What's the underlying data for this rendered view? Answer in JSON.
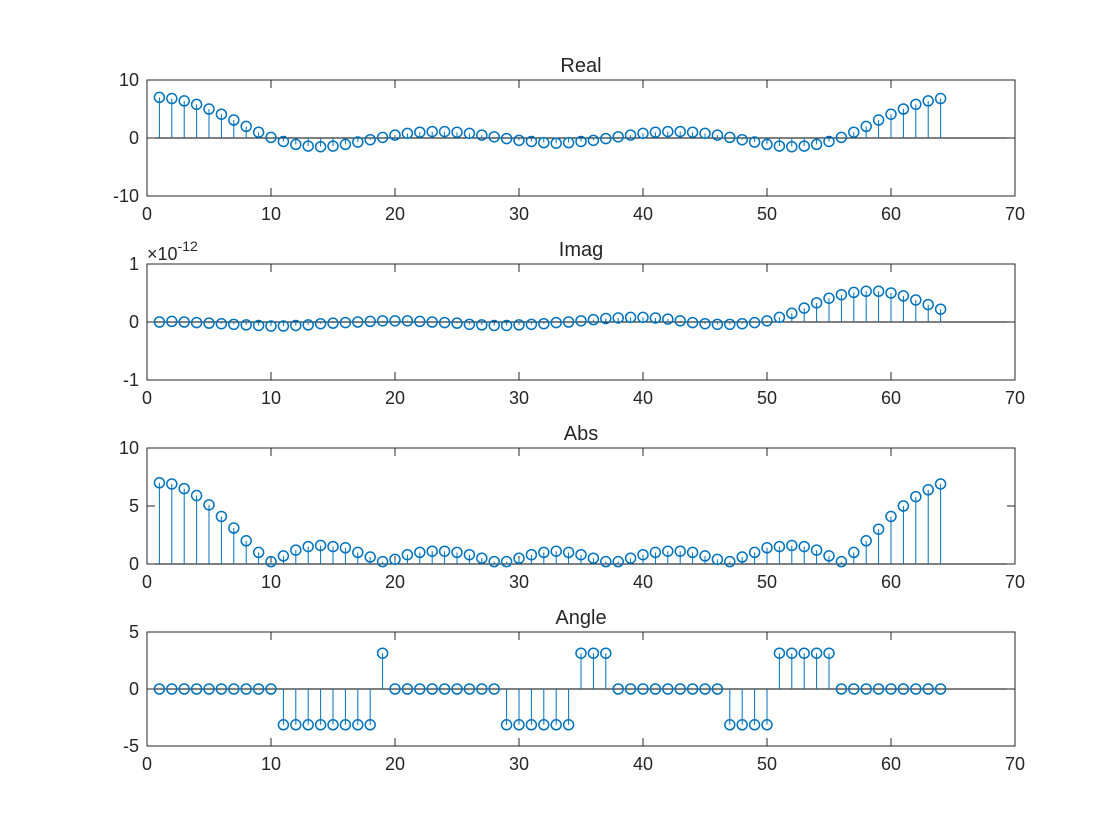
{
  "figure": {
    "background": "#ffffff",
    "axis_color": "#262626",
    "marker_color": "#0072BD"
  },
  "chart_data": [
    {
      "type": "stem",
      "title": "Real",
      "xlabel": "",
      "ylabel": "",
      "xlim": [
        0,
        70
      ],
      "ylim": [
        -10,
        10
      ],
      "xticks": [
        0,
        10,
        20,
        30,
        40,
        50,
        60,
        70
      ],
      "yticks": [
        -10,
        0,
        10
      ],
      "exponent_label": "",
      "x": [
        1,
        2,
        3,
        4,
        5,
        6,
        7,
        8,
        9,
        10,
        11,
        12,
        13,
        14,
        15,
        16,
        17,
        18,
        19,
        20,
        21,
        22,
        23,
        24,
        25,
        26,
        27,
        28,
        29,
        30,
        31,
        32,
        33,
        34,
        35,
        36,
        37,
        38,
        39,
        40,
        41,
        42,
        43,
        44,
        45,
        46,
        47,
        48,
        49,
        50,
        51,
        52,
        53,
        54,
        55,
        56,
        57,
        58,
        59,
        60,
        61,
        62,
        63,
        64
      ],
      "values": [
        7,
        6.8,
        6.4,
        5.8,
        5,
        4.1,
        3.1,
        2,
        1,
        0.1,
        -0.6,
        -1.1,
        -1.4,
        -1.5,
        -1.4,
        -1.1,
        -0.7,
        -0.3,
        0.1,
        0.5,
        0.8,
        1,
        1.1,
        1.1,
        1,
        0.8,
        0.5,
        0.2,
        -0.1,
        -0.4,
        -0.6,
        -0.8,
        -0.9,
        -0.8,
        -0.6,
        -0.4,
        -0.1,
        0.2,
        0.5,
        0.8,
        1,
        1.1,
        1.1,
        1,
        0.8,
        0.5,
        0.1,
        -0.3,
        -0.7,
        -1.1,
        -1.4,
        -1.5,
        -1.4,
        -1.1,
        -0.6,
        0.1,
        1,
        2,
        3.1,
        4.1,
        5,
        5.8,
        6.4,
        6.8
      ]
    },
    {
      "type": "stem",
      "title": "Imag",
      "xlabel": "",
      "ylabel": "",
      "xlim": [
        0,
        70
      ],
      "ylim": [
        -1,
        1
      ],
      "xticks": [
        0,
        10,
        20,
        30,
        40,
        50,
        60,
        70
      ],
      "yticks": [
        -1,
        0,
        1
      ],
      "exponent_label": "×10",
      "exponent_power": "-12",
      "x": [
        1,
        2,
        3,
        4,
        5,
        6,
        7,
        8,
        9,
        10,
        11,
        12,
        13,
        14,
        15,
        16,
        17,
        18,
        19,
        20,
        21,
        22,
        23,
        24,
        25,
        26,
        27,
        28,
        29,
        30,
        31,
        32,
        33,
        34,
        35,
        36,
        37,
        38,
        39,
        40,
        41,
        42,
        43,
        44,
        45,
        46,
        47,
        48,
        49,
        50,
        51,
        52,
        53,
        54,
        55,
        56,
        57,
        58,
        59,
        60,
        61,
        62,
        63,
        64
      ],
      "values": [
        0,
        0.01,
        0,
        -0.01,
        -0.02,
        -0.03,
        -0.04,
        -0.05,
        -0.06,
        -0.07,
        -0.07,
        -0.06,
        -0.05,
        -0.03,
        -0.02,
        -0.01,
        0,
        0.01,
        0.02,
        0.02,
        0.02,
        0.01,
        0,
        -0.01,
        -0.02,
        -0.04,
        -0.05,
        -0.06,
        -0.06,
        -0.05,
        -0.04,
        -0.03,
        -0.01,
        0,
        0.02,
        0.04,
        0.06,
        0.07,
        0.08,
        0.08,
        0.07,
        0.05,
        0.02,
        -0.01,
        -0.03,
        -0.04,
        -0.04,
        -0.03,
        -0.01,
        0.02,
        0.08,
        0.15,
        0.24,
        0.33,
        0.41,
        0.47,
        0.51,
        0.53,
        0.53,
        0.5,
        0.45,
        0.38,
        0.3,
        0.22
      ]
    },
    {
      "type": "stem",
      "title": "Abs",
      "xlabel": "",
      "ylabel": "",
      "xlim": [
        0,
        70
      ],
      "ylim": [
        0,
        10
      ],
      "xticks": [
        0,
        10,
        20,
        30,
        40,
        50,
        60,
        70
      ],
      "yticks": [
        0,
        5,
        10
      ],
      "exponent_label": "",
      "x": [
        1,
        2,
        3,
        4,
        5,
        6,
        7,
        8,
        9,
        10,
        11,
        12,
        13,
        14,
        15,
        16,
        17,
        18,
        19,
        20,
        21,
        22,
        23,
        24,
        25,
        26,
        27,
        28,
        29,
        30,
        31,
        32,
        33,
        34,
        35,
        36,
        37,
        38,
        39,
        40,
        41,
        42,
        43,
        44,
        45,
        46,
        47,
        48,
        49,
        50,
        51,
        52,
        53,
        54,
        55,
        56,
        57,
        58,
        59,
        60,
        61,
        62,
        63,
        64
      ],
      "values": [
        7,
        6.9,
        6.5,
        5.9,
        5.1,
        4.1,
        3.1,
        2,
        1,
        0.2,
        0.7,
        1.2,
        1.5,
        1.6,
        1.5,
        1.4,
        1,
        0.6,
        0.2,
        0.4,
        0.8,
        1,
        1.1,
        1.1,
        1,
        0.8,
        0.5,
        0.2,
        0.2,
        0.5,
        0.8,
        1,
        1.1,
        1,
        0.8,
        0.5,
        0.2,
        0.2,
        0.5,
        0.8,
        1,
        1.1,
        1.1,
        1,
        0.7,
        0.4,
        0.2,
        0.6,
        1,
        1.4,
        1.5,
        1.6,
        1.5,
        1.2,
        0.7,
        0.2,
        1,
        2,
        3,
        4.1,
        5,
        5.8,
        6.4,
        6.9
      ]
    },
    {
      "type": "stem",
      "title": "Angle",
      "xlabel": "",
      "ylabel": "",
      "xlim": [
        0,
        70
      ],
      "ylim": [
        -5,
        5
      ],
      "xticks": [
        0,
        10,
        20,
        30,
        40,
        50,
        60,
        70
      ],
      "yticks": [
        -5,
        0,
        5
      ],
      "exponent_label": "",
      "x": [
        1,
        2,
        3,
        4,
        5,
        6,
        7,
        8,
        9,
        10,
        11,
        12,
        13,
        14,
        15,
        16,
        17,
        18,
        19,
        20,
        21,
        22,
        23,
        24,
        25,
        26,
        27,
        28,
        29,
        30,
        31,
        32,
        33,
        34,
        35,
        36,
        37,
        38,
        39,
        40,
        41,
        42,
        43,
        44,
        45,
        46,
        47,
        48,
        49,
        50,
        51,
        52,
        53,
        54,
        55,
        56,
        57,
        58,
        59,
        60,
        61,
        62,
        63,
        64
      ],
      "values": [
        0,
        0,
        0,
        0,
        0,
        0,
        0,
        0,
        0,
        0,
        -3.14,
        -3.14,
        -3.14,
        -3.14,
        -3.14,
        -3.14,
        -3.14,
        -3.14,
        3.14,
        0,
        0,
        0,
        0,
        0,
        0,
        0,
        0,
        0,
        -3.14,
        -3.14,
        -3.14,
        -3.14,
        -3.14,
        -3.14,
        3.14,
        3.14,
        3.14,
        0,
        0,
        0,
        0,
        0,
        0,
        0,
        0,
        0,
        -3.14,
        -3.14,
        -3.14,
        -3.14,
        3.14,
        3.14,
        3.14,
        3.14,
        3.14,
        0,
        0,
        0,
        0,
        0,
        0,
        0,
        0,
        0
      ]
    }
  ]
}
